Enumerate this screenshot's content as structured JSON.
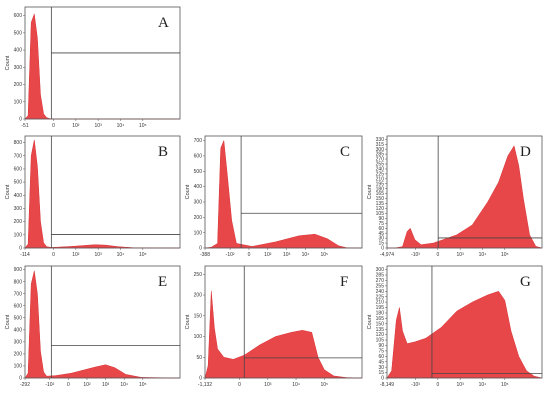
{
  "figure": {
    "panels": [
      {
        "letter": "A",
        "y_axis_title": "Count",
        "y_ticks": [
          0,
          100,
          200,
          300,
          400,
          500,
          600
        ],
        "y_tick_labels": [
          "0",
          "100",
          "200",
          "300",
          "400",
          "500",
          "600"
        ],
        "y_max": 650,
        "x_tick_labels": [
          "-51",
          "0",
          "10²",
          "10³",
          "10⁴",
          "10⁵"
        ],
        "gate": {
          "x": 0.17,
          "y": 0.59
        }
      },
      {
        "letter": "B",
        "y_axis_title": "Count",
        "y_ticks": [
          0,
          100,
          200,
          300,
          400,
          500,
          600,
          700,
          800
        ],
        "y_tick_labels": [
          "0",
          "100",
          "200",
          "300",
          "400",
          "500",
          "600",
          "700",
          "800"
        ],
        "y_max": 850,
        "x_tick_labels": [
          "-114",
          "0",
          "10²",
          "10³",
          "10⁴",
          "10⁵"
        ],
        "gate": {
          "x": 0.17,
          "y": 0.12
        }
      },
      {
        "letter": "C",
        "y_axis_title": "Count",
        "y_ticks": [
          0,
          100,
          200,
          300,
          400,
          500,
          600,
          700
        ],
        "y_tick_labels": [
          "0",
          "100",
          "200",
          "300",
          "400",
          "500",
          "600",
          "700"
        ],
        "y_max": 730,
        "x_tick_labels": [
          "-388",
          "-10²",
          "0",
          "10²",
          "10³",
          "10⁴",
          "10⁵"
        ],
        "gate": {
          "x": 0.23,
          "y": 0.31
        }
      },
      {
        "letter": "D",
        "y_axis_title": "Count",
        "y_ticks": [
          0,
          15,
          30,
          45,
          60,
          75,
          90,
          105,
          120,
          135,
          150,
          165,
          180,
          195,
          210,
          225,
          240,
          255,
          270,
          285,
          300,
          315,
          330
        ],
        "y_tick_labels": [
          "0",
          "15",
          "30",
          "45",
          "60",
          "75",
          "90",
          "105",
          "120",
          "135",
          "150",
          "165",
          "180",
          "195",
          "210",
          "225",
          "240",
          "255",
          "270",
          "285",
          "300",
          "315",
          "330"
        ],
        "y_max": 340,
        "x_tick_labels": [
          "-4,974",
          "-10³",
          "0",
          "10³",
          "10⁴",
          "10⁵"
        ],
        "gate": {
          "x": 0.33,
          "y": 0.09
        }
      },
      {
        "letter": "E",
        "y_axis_title": "Count",
        "y_ticks": [
          0,
          100,
          200,
          300,
          400,
          500,
          600,
          700,
          800,
          900
        ],
        "y_tick_labels": [
          "0",
          "100",
          "200",
          "300",
          "400",
          "500",
          "600",
          "700",
          "800",
          "900"
        ],
        "y_max": 930,
        "x_tick_labels": [
          "-292",
          "-10²",
          "0",
          "10²",
          "10³",
          "10⁴",
          "10⁵"
        ],
        "gate": {
          "x": 0.17,
          "y": 0.29
        }
      },
      {
        "letter": "F",
        "y_axis_title": "Count",
        "y_ticks": [
          0,
          50,
          100,
          150,
          200,
          250
        ],
        "y_tick_labels": [
          "0",
          "50",
          "100",
          "150",
          "200",
          "250"
        ],
        "y_max": 270,
        "x_tick_labels": [
          "-1,132",
          "0",
          "10³",
          "10⁴",
          "10⁵"
        ],
        "gate": {
          "x": 0.25,
          "y": 0.18
        }
      },
      {
        "letter": "G",
        "y_axis_title": "Count",
        "y_ticks": [
          0,
          15,
          30,
          45,
          60,
          75,
          90,
          105,
          120,
          135,
          150,
          165,
          180,
          195,
          210,
          225,
          240,
          255,
          270,
          285,
          300
        ],
        "y_tick_labels": [
          "0",
          "15",
          "30",
          "45",
          "60",
          "75",
          "90",
          "105",
          "120",
          "135",
          "150",
          "165",
          "180",
          "195",
          "210",
          "225",
          "240",
          "255",
          "270",
          "285",
          "300"
        ],
        "y_max": 310,
        "x_tick_labels": [
          "-8,149",
          "-10³",
          "0",
          "10³",
          "10⁴",
          "10⁵"
        ],
        "gate": {
          "x": 0.29,
          "y": 0.04
        }
      }
    ]
  },
  "chart_data": [
    {
      "type": "area",
      "panel": "A",
      "ylim": [
        0,
        650
      ],
      "fill_color": "#e8474a",
      "x": [
        0,
        0.02,
        0.04,
        0.06,
        0.08,
        0.1,
        0.12,
        0.14,
        0.16,
        0.18,
        0.25,
        0.4,
        0.6,
        0.8,
        1.0
      ],
      "values": [
        0,
        20,
        560,
        610,
        470,
        140,
        30,
        8,
        2,
        0,
        0,
        0,
        0,
        0,
        0
      ]
    },
    {
      "type": "area",
      "panel": "B",
      "ylim": [
        0,
        850
      ],
      "fill_color": "#e8474a",
      "x": [
        0,
        0.02,
        0.04,
        0.06,
        0.08,
        0.1,
        0.12,
        0.14,
        0.17,
        0.3,
        0.45,
        0.52,
        0.6,
        0.7,
        1.0
      ],
      "values": [
        0,
        30,
        700,
        820,
        620,
        200,
        40,
        10,
        4,
        12,
        25,
        22,
        10,
        2,
        0
      ]
    },
    {
      "type": "area",
      "panel": "C",
      "ylim": [
        0,
        730
      ],
      "fill_color": "#e8474a",
      "x": [
        0,
        0.04,
        0.08,
        0.1,
        0.12,
        0.14,
        0.17,
        0.2,
        0.3,
        0.45,
        0.6,
        0.7,
        0.78,
        0.85,
        0.9,
        1.0
      ],
      "values": [
        0,
        5,
        30,
        650,
        700,
        500,
        180,
        30,
        10,
        40,
        80,
        90,
        60,
        15,
        2,
        0
      ]
    },
    {
      "type": "area",
      "panel": "D",
      "ylim": [
        0,
        340
      ],
      "fill_color": "#e8474a",
      "x": [
        0,
        0.05,
        0.1,
        0.13,
        0.15,
        0.18,
        0.22,
        0.3,
        0.45,
        0.55,
        0.65,
        0.72,
        0.78,
        0.82,
        0.85,
        0.88,
        0.92,
        0.96,
        1.0
      ],
      "values": [
        0,
        0,
        4,
        50,
        60,
        25,
        10,
        15,
        40,
        70,
        140,
        200,
        280,
        310,
        250,
        150,
        40,
        5,
        0
      ]
    },
    {
      "type": "area",
      "panel": "E",
      "ylim": [
        0,
        930
      ],
      "fill_color": "#e8474a",
      "x": [
        0,
        0.02,
        0.04,
        0.06,
        0.08,
        0.1,
        0.12,
        0.14,
        0.2,
        0.3,
        0.45,
        0.52,
        0.58,
        0.65,
        0.75,
        1.0
      ],
      "values": [
        0,
        40,
        780,
        890,
        700,
        220,
        50,
        15,
        20,
        40,
        90,
        110,
        85,
        30,
        5,
        0
      ]
    },
    {
      "type": "area",
      "panel": "F",
      "ylim": [
        0,
        270
      ],
      "fill_color": "#e8474a",
      "x": [
        0,
        0.02,
        0.04,
        0.06,
        0.08,
        0.12,
        0.18,
        0.25,
        0.35,
        0.45,
        0.55,
        0.62,
        0.68,
        0.72,
        0.76,
        0.82,
        0.9,
        1.0
      ],
      "values": [
        0,
        30,
        210,
        120,
        70,
        50,
        45,
        55,
        80,
        100,
        110,
        115,
        110,
        50,
        20,
        5,
        1,
        0
      ]
    },
    {
      "type": "area",
      "panel": "G",
      "ylim": [
        0,
        310
      ],
      "fill_color": "#e8474a",
      "x": [
        0,
        0.03,
        0.06,
        0.08,
        0.1,
        0.13,
        0.18,
        0.25,
        0.35,
        0.45,
        0.55,
        0.65,
        0.72,
        0.76,
        0.8,
        0.85,
        0.9,
        0.95,
        1.0
      ],
      "values": [
        0,
        20,
        160,
        195,
        130,
        95,
        100,
        110,
        140,
        185,
        210,
        230,
        240,
        215,
        130,
        60,
        20,
        5,
        0
      ]
    }
  ]
}
